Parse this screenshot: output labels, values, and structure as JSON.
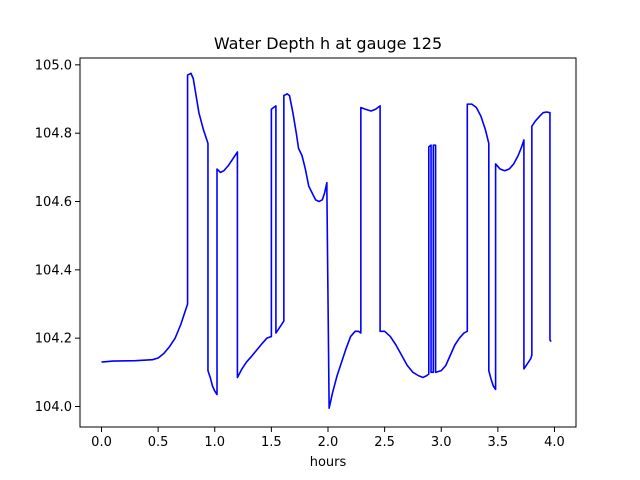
{
  "chart_data": {
    "type": "line",
    "title": "Water Depth h at gauge 125",
    "xlabel": "hours",
    "ylabel": "",
    "xlim": [
      -0.19,
      4.19
    ],
    "ylim": [
      103.94,
      105.02
    ],
    "x_ticks": [
      0.0,
      0.5,
      1.0,
      1.5,
      2.0,
      2.5,
      3.0,
      3.5,
      4.0
    ],
    "x_tick_labels": [
      "0.0",
      "0.5",
      "1.0",
      "1.5",
      "2.0",
      "2.5",
      "3.0",
      "3.5",
      "4.0"
    ],
    "y_ticks": [
      104.0,
      104.2,
      104.4,
      104.6,
      104.8,
      105.0
    ],
    "y_tick_labels": [
      "104.0",
      "104.2",
      "104.4",
      "104.6",
      "104.8",
      "105.0"
    ],
    "grid": false,
    "legend": "none",
    "series": [
      {
        "color": "#0000ff",
        "points": [
          [
            0.0,
            104.13
          ],
          [
            0.1,
            104.133
          ],
          [
            0.3,
            104.134
          ],
          [
            0.45,
            104.137
          ],
          [
            0.5,
            104.142
          ],
          [
            0.55,
            104.155
          ],
          [
            0.6,
            104.175
          ],
          [
            0.65,
            104.2
          ],
          [
            0.7,
            104.24
          ],
          [
            0.73,
            104.27
          ],
          [
            0.76,
            104.3
          ],
          [
            0.76,
            104.97
          ],
          [
            0.79,
            104.975
          ],
          [
            0.81,
            104.96
          ],
          [
            0.83,
            104.92
          ],
          [
            0.86,
            104.86
          ],
          [
            0.9,
            104.81
          ],
          [
            0.94,
            104.77
          ],
          [
            0.94,
            104.105
          ],
          [
            0.96,
            104.085
          ],
          [
            0.98,
            104.06
          ],
          [
            1.0,
            104.045
          ],
          [
            1.02,
            104.035
          ],
          [
            1.02,
            104.695
          ],
          [
            1.05,
            104.685
          ],
          [
            1.08,
            104.69
          ],
          [
            1.12,
            104.705
          ],
          [
            1.16,
            104.725
          ],
          [
            1.2,
            104.745
          ],
          [
            1.2,
            104.085
          ],
          [
            1.24,
            104.11
          ],
          [
            1.28,
            104.13
          ],
          [
            1.32,
            104.145
          ],
          [
            1.37,
            104.165
          ],
          [
            1.42,
            104.185
          ],
          [
            1.46,
            104.2
          ],
          [
            1.5,
            104.205
          ],
          [
            1.5,
            104.87
          ],
          [
            1.52,
            104.875
          ],
          [
            1.54,
            104.88
          ],
          [
            1.54,
            104.215
          ],
          [
            1.57,
            104.23
          ],
          [
            1.6,
            104.245
          ],
          [
            1.61,
            104.25
          ],
          [
            1.61,
            104.91
          ],
          [
            1.64,
            104.915
          ],
          [
            1.66,
            104.91
          ],
          [
            1.69,
            104.86
          ],
          [
            1.72,
            104.8
          ],
          [
            1.74,
            104.755
          ],
          [
            1.77,
            104.735
          ],
          [
            1.8,
            104.695
          ],
          [
            1.83,
            104.645
          ],
          [
            1.86,
            104.625
          ],
          [
            1.89,
            104.605
          ],
          [
            1.92,
            104.6
          ],
          [
            1.95,
            104.605
          ],
          [
            1.97,
            104.625
          ],
          [
            1.99,
            104.655
          ],
          [
            1.99,
            104.635
          ],
          [
            2.01,
            103.995
          ],
          [
            2.04,
            104.04
          ],
          [
            2.08,
            104.09
          ],
          [
            2.12,
            104.13
          ],
          [
            2.16,
            104.17
          ],
          [
            2.2,
            104.205
          ],
          [
            2.24,
            104.22
          ],
          [
            2.27,
            104.22
          ],
          [
            2.29,
            104.215
          ],
          [
            2.29,
            104.875
          ],
          [
            2.33,
            104.87
          ],
          [
            2.38,
            104.865
          ],
          [
            2.42,
            104.87
          ],
          [
            2.46,
            104.88
          ],
          [
            2.46,
            104.22
          ],
          [
            2.5,
            104.22
          ],
          [
            2.55,
            104.205
          ],
          [
            2.6,
            104.18
          ],
          [
            2.65,
            104.15
          ],
          [
            2.7,
            104.12
          ],
          [
            2.75,
            104.1
          ],
          [
            2.8,
            104.09
          ],
          [
            2.84,
            104.085
          ],
          [
            2.87,
            104.09
          ],
          [
            2.89,
            104.095
          ],
          [
            2.89,
            104.76
          ],
          [
            2.91,
            104.765
          ],
          [
            2.91,
            104.1
          ],
          [
            2.93,
            104.1
          ],
          [
            2.93,
            104.765
          ],
          [
            2.95,
            104.765
          ],
          [
            2.95,
            104.1
          ],
          [
            3.0,
            104.105
          ],
          [
            3.04,
            104.12
          ],
          [
            3.08,
            104.15
          ],
          [
            3.12,
            104.18
          ],
          [
            3.16,
            104.2
          ],
          [
            3.2,
            104.215
          ],
          [
            3.23,
            104.22
          ],
          [
            3.23,
            104.885
          ],
          [
            3.27,
            104.885
          ],
          [
            3.31,
            104.875
          ],
          [
            3.35,
            104.85
          ],
          [
            3.39,
            104.81
          ],
          [
            3.42,
            104.77
          ],
          [
            3.42,
            104.105
          ],
          [
            3.44,
            104.08
          ],
          [
            3.46,
            104.06
          ],
          [
            3.48,
            104.05
          ],
          [
            3.48,
            104.71
          ],
          [
            3.52,
            104.695
          ],
          [
            3.56,
            104.69
          ],
          [
            3.6,
            104.695
          ],
          [
            3.64,
            104.71
          ],
          [
            3.68,
            104.735
          ],
          [
            3.71,
            104.76
          ],
          [
            3.73,
            104.78
          ],
          [
            3.73,
            104.11
          ],
          [
            3.76,
            104.125
          ],
          [
            3.79,
            104.14
          ],
          [
            3.8,
            104.15
          ],
          [
            3.8,
            104.82
          ],
          [
            3.83,
            104.835
          ],
          [
            3.87,
            104.85
          ],
          [
            3.9,
            104.86
          ],
          [
            3.93,
            104.862
          ],
          [
            3.96,
            104.86
          ],
          [
            3.96,
            104.195
          ],
          [
            3.97,
            104.19
          ]
        ]
      }
    ]
  }
}
